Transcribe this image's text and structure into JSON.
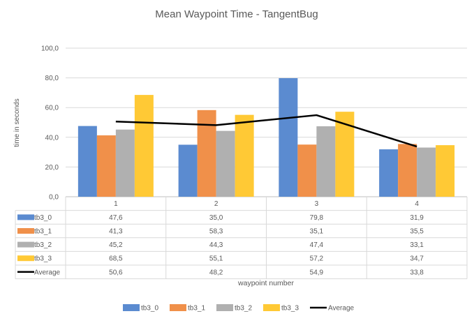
{
  "chart_data": {
    "type": "bar",
    "title": "Mean Waypoint Time - TangentBug",
    "xlabel": "waypoint number",
    "ylabel": "time in seconds",
    "ylim": [
      0,
      100
    ],
    "yticks": [
      "0,0",
      "20,0",
      "40,0",
      "60,0",
      "80,0",
      "100,0"
    ],
    "grid": true,
    "legend": "bottom",
    "categories": [
      "1",
      "2",
      "3",
      "4"
    ],
    "series": [
      {
        "name": "tb3_0",
        "kind": "bar",
        "color": "#5B8BD0",
        "values": [
          47.6,
          35.0,
          79.8,
          31.9
        ],
        "labels": [
          "47,6",
          "35,0",
          "79,8",
          "31,9"
        ]
      },
      {
        "name": "tb3_1",
        "kind": "bar",
        "color": "#F0904A",
        "values": [
          41.3,
          58.3,
          35.1,
          35.5
        ],
        "labels": [
          "41,3",
          "58,3",
          "35,1",
          "35,5"
        ]
      },
      {
        "name": "tb3_2",
        "kind": "bar",
        "color": "#B0B0B0",
        "values": [
          45.2,
          44.3,
          47.4,
          33.1
        ],
        "labels": [
          "45,2",
          "44,3",
          "47,4",
          "33,1"
        ]
      },
      {
        "name": "tb3_3",
        "kind": "bar",
        "color": "#FFC935",
        "values": [
          68.5,
          55.1,
          57.2,
          34.7
        ],
        "labels": [
          "68,5",
          "55,1",
          "57,2",
          "34,7"
        ]
      },
      {
        "name": "Average",
        "kind": "line",
        "color": "#000000",
        "values": [
          50.6,
          48.2,
          54.9,
          33.8
        ],
        "labels": [
          "50,6",
          "48,2",
          "54,9",
          "33,8"
        ]
      }
    ]
  }
}
